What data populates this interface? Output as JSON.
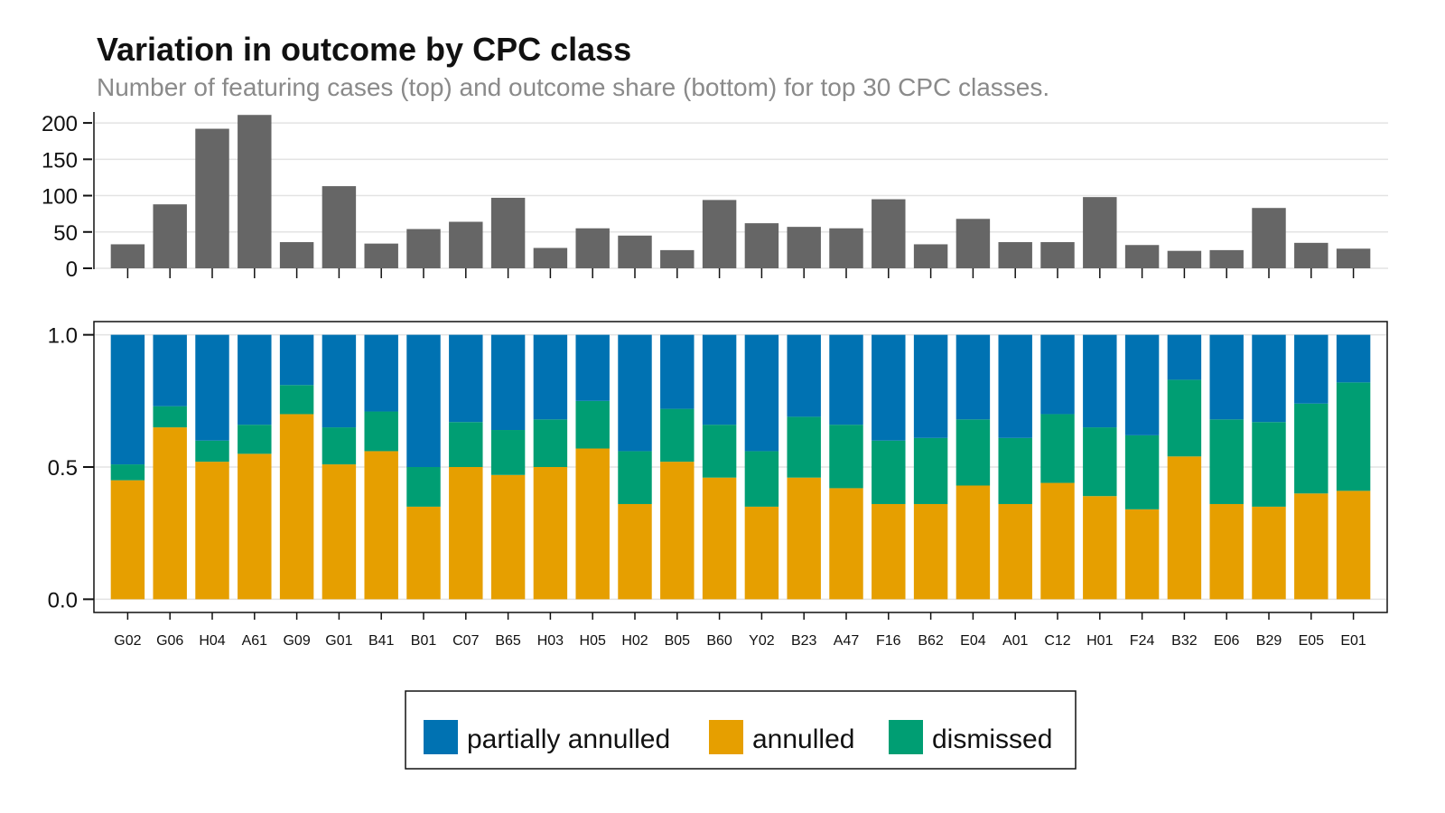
{
  "title": "Variation in outcome by CPC class",
  "subtitle": "Number of featuring cases (top) and outcome share (bottom) for top 30 CPC classes.",
  "colors": {
    "count_bar": "#666666",
    "partially annulled": "#0072b2",
    "annulled": "#e69f00",
    "dismissed": "#009e73",
    "grid": "#e3e3e3"
  },
  "chart_data": [
    {
      "type": "bar",
      "panel": "top",
      "categories": [
        "G02",
        "G06",
        "H04",
        "A61",
        "G09",
        "G01",
        "B41",
        "B01",
        "C07",
        "B65",
        "H03",
        "H05",
        "H02",
        "B05",
        "B60",
        "Y02",
        "B23",
        "A47",
        "F16",
        "B62",
        "E04",
        "A01",
        "C12",
        "H01",
        "F24",
        "B32",
        "E06",
        "B29",
        "E05",
        "E01"
      ],
      "values": [
        33,
        88,
        192,
        211,
        36,
        113,
        34,
        54,
        64,
        97,
        28,
        55,
        45,
        25,
        94,
        62,
        57,
        55,
        95,
        33,
        68,
        36,
        36,
        98,
        32,
        24,
        25,
        83,
        35,
        27
      ],
      "ylim": [
        0,
        220
      ],
      "yticks": [
        0,
        50,
        100,
        150,
        200
      ],
      "grid": true
    },
    {
      "type": "bar",
      "stacked": true,
      "panel": "bottom",
      "categories": [
        "G02",
        "G06",
        "H04",
        "A61",
        "G09",
        "G01",
        "B41",
        "B01",
        "C07",
        "B65",
        "H03",
        "H05",
        "H02",
        "B05",
        "B60",
        "Y02",
        "B23",
        "A47",
        "F16",
        "B62",
        "E04",
        "A01",
        "C12",
        "H01",
        "F24",
        "B32",
        "E06",
        "B29",
        "E05",
        "E01"
      ],
      "series": [
        {
          "name": "annulled",
          "values": [
            0.45,
            0.65,
            0.52,
            0.55,
            0.7,
            0.51,
            0.56,
            0.35,
            0.5,
            0.47,
            0.5,
            0.57,
            0.36,
            0.52,
            0.46,
            0.35,
            0.46,
            0.42,
            0.36,
            0.36,
            0.43,
            0.36,
            0.44,
            0.39,
            0.34,
            0.54,
            0.36,
            0.35,
            0.4,
            0.41
          ]
        },
        {
          "name": "dismissed",
          "values": [
            0.06,
            0.08,
            0.08,
            0.11,
            0.11,
            0.14,
            0.15,
            0.15,
            0.17,
            0.17,
            0.18,
            0.18,
            0.2,
            0.2,
            0.2,
            0.21,
            0.23,
            0.24,
            0.24,
            0.25,
            0.25,
            0.25,
            0.26,
            0.26,
            0.28,
            0.29,
            0.32,
            0.32,
            0.34,
            0.41
          ]
        },
        {
          "name": "partially annulled",
          "values": [
            0.49,
            0.27,
            0.4,
            0.34,
            0.19,
            0.35,
            0.29,
            0.5,
            0.33,
            0.36,
            0.32,
            0.25,
            0.44,
            0.28,
            0.34,
            0.44,
            0.31,
            0.34,
            0.4,
            0.39,
            0.32,
            0.39,
            0.3,
            0.35,
            0.38,
            0.17,
            0.32,
            0.33,
            0.26,
            0.18
          ]
        }
      ],
      "ylim": [
        -0.05,
        1.05
      ],
      "yticks": [
        "0.0",
        "0.5",
        "1.0"
      ],
      "grid": true
    }
  ],
  "legend": {
    "position": "bottom-center",
    "entries": [
      "partially annulled",
      "annulled",
      "dismissed"
    ]
  }
}
